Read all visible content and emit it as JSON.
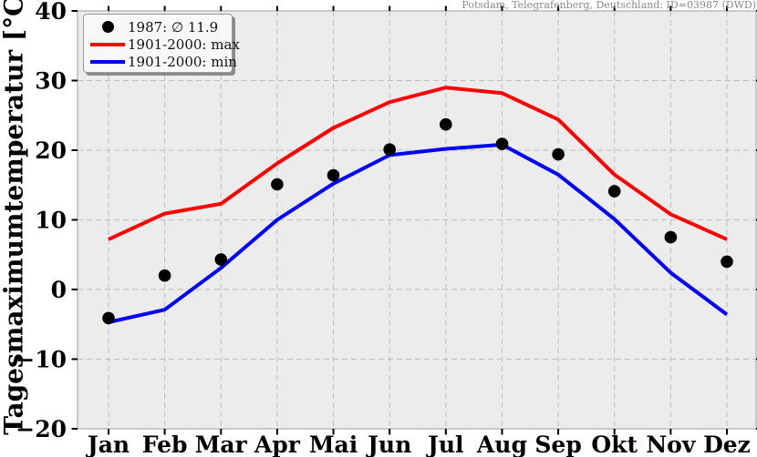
{
  "station_title": "Potsdam, Telegrafenberg, Deutschland: ID=03987 (DWD)",
  "legend": {
    "items": [
      {
        "label": "1987: ∅ 11.9",
        "marker": "dot",
        "color": "#000000"
      },
      {
        "label": "1901-2000: max",
        "marker": "line",
        "color": "#ff0000"
      },
      {
        "label": "1901-2000: min",
        "marker": "line",
        "color": "#0000ff"
      }
    ]
  },
  "chart_data": {
    "type": "line",
    "title": "Potsdam, Telegrafenberg, Deutschland: ID=03987 (DWD)",
    "xlabel": "",
    "ylabel": "Tagesmaximumtemperatur [°C]",
    "categories": [
      "Jan",
      "Feb",
      "Mar",
      "Apr",
      "Mai",
      "Jun",
      "Jul",
      "Aug",
      "Sep",
      "Okt",
      "Nov",
      "Dez"
    ],
    "series": [
      {
        "name": "1987: ∅ 11.9",
        "type": "scatter",
        "color": "#000000",
        "values": [
          -4.1,
          2.0,
          4.3,
          15.1,
          16.4,
          20.1,
          23.7,
          20.9,
          19.4,
          14.1,
          7.5,
          4.0
        ]
      },
      {
        "name": "1901-2000: max",
        "type": "line",
        "color": "#ff0000",
        "values": [
          7.2,
          10.9,
          12.3,
          18.1,
          23.2,
          26.9,
          29.0,
          28.2,
          24.4,
          16.5,
          10.8,
          7.2
        ]
      },
      {
        "name": "1901-2000: min",
        "type": "line",
        "color": "#0000ff",
        "values": [
          -4.7,
          -2.9,
          3.1,
          10.0,
          15.2,
          19.3,
          20.2,
          20.8,
          16.5,
          10.1,
          2.4,
          -3.6
        ]
      }
    ],
    "ylim": [
      -20,
      40
    ],
    "yticks": [
      40,
      30,
      20,
      10,
      0,
      -10,
      -20
    ],
    "grid": true,
    "grid_style": "dashed",
    "legend_position": "upper-left",
    "mean_1987": 11.9
  },
  "colors": {
    "plot_bg": "#ececec",
    "grid": "#bdbdbd",
    "spine": "#b2b2b2",
    "tick": "#000000",
    "max_line": "#ff0000",
    "min_line": "#0000ff",
    "dot": "#000000",
    "title_text": "#8a8a8a"
  }
}
